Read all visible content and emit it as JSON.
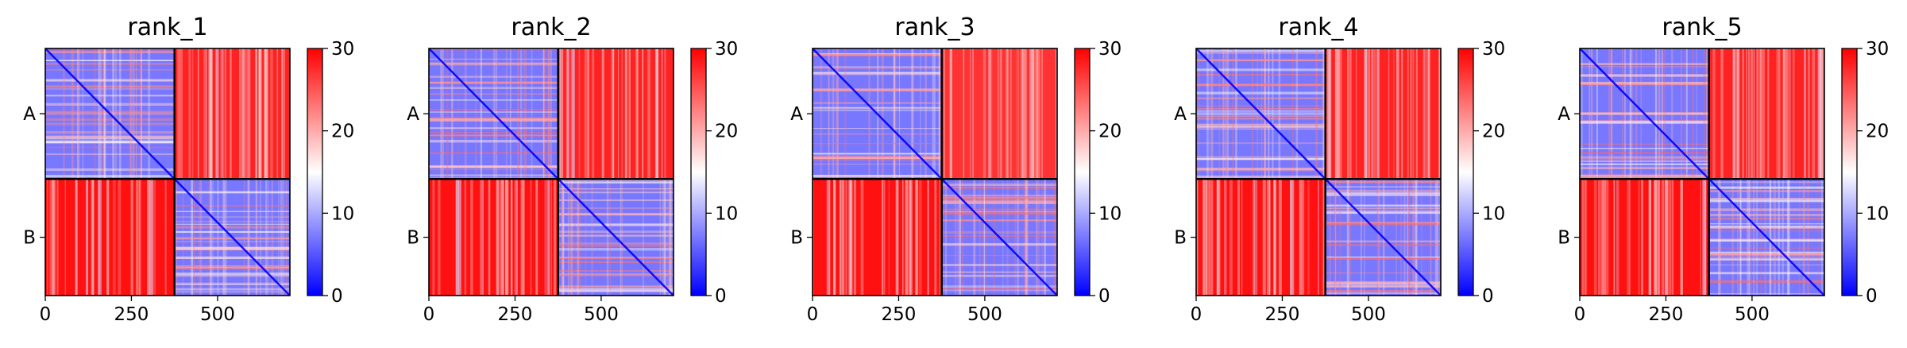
{
  "chart_data": [
    {
      "type": "heatmap",
      "title": "rank_1",
      "xlim": [
        0,
        710
      ],
      "x_ticks": [
        0,
        250,
        500
      ],
      "chain_boundary": 375,
      "y_labels": [
        "A",
        "B"
      ],
      "colorbar": {
        "range": [
          0,
          30
        ],
        "ticks": [
          0,
          10,
          20,
          30
        ],
        "colormap": [
          "#0000ff",
          "#ffffff",
          "#ff0000"
        ]
      },
      "blocks": [
        {
          "row": "A",
          "col": "A",
          "mean_value": 7
        },
        {
          "row": "A",
          "col": "B",
          "mean_value": 28
        },
        {
          "row": "B",
          "col": "A",
          "mean_value": 29
        },
        {
          "row": "B",
          "col": "B",
          "mean_value": 7
        }
      ]
    },
    {
      "type": "heatmap",
      "title": "rank_2",
      "xlim": [
        0,
        710
      ],
      "x_ticks": [
        0,
        250,
        500
      ],
      "chain_boundary": 375,
      "y_labels": [
        "A",
        "B"
      ],
      "colorbar": {
        "range": [
          0,
          30
        ],
        "ticks": [
          0,
          10,
          20,
          30
        ],
        "colormap": [
          "#0000ff",
          "#ffffff",
          "#ff0000"
        ]
      },
      "blocks": [
        {
          "row": "A",
          "col": "A",
          "mean_value": 7
        },
        {
          "row": "A",
          "col": "B",
          "mean_value": 28
        },
        {
          "row": "B",
          "col": "A",
          "mean_value": 29
        },
        {
          "row": "B",
          "col": "B",
          "mean_value": 7
        }
      ]
    },
    {
      "type": "heatmap",
      "title": "rank_3",
      "xlim": [
        0,
        710
      ],
      "x_ticks": [
        0,
        250,
        500
      ],
      "chain_boundary": 375,
      "y_labels": [
        "A",
        "B"
      ],
      "colorbar": {
        "range": [
          0,
          30
        ],
        "ticks": [
          0,
          10,
          20,
          30
        ],
        "colormap": [
          "#0000ff",
          "#ffffff",
          "#ff0000"
        ]
      },
      "blocks": [
        {
          "row": "A",
          "col": "A",
          "mean_value": 7
        },
        {
          "row": "A",
          "col": "B",
          "mean_value": 27
        },
        {
          "row": "B",
          "col": "A",
          "mean_value": 29
        },
        {
          "row": "B",
          "col": "B",
          "mean_value": 7
        }
      ]
    },
    {
      "type": "heatmap",
      "title": "rank_4",
      "xlim": [
        0,
        710
      ],
      "x_ticks": [
        0,
        250,
        500
      ],
      "chain_boundary": 375,
      "y_labels": [
        "A",
        "B"
      ],
      "colorbar": {
        "range": [
          0,
          30
        ],
        "ticks": [
          0,
          10,
          20,
          30
        ],
        "colormap": [
          "#0000ff",
          "#ffffff",
          "#ff0000"
        ]
      },
      "blocks": [
        {
          "row": "A",
          "col": "A",
          "mean_value": 7
        },
        {
          "row": "A",
          "col": "B",
          "mean_value": 28
        },
        {
          "row": "B",
          "col": "A",
          "mean_value": 29
        },
        {
          "row": "B",
          "col": "B",
          "mean_value": 7
        }
      ]
    },
    {
      "type": "heatmap",
      "title": "rank_5",
      "xlim": [
        0,
        710
      ],
      "x_ticks": [
        0,
        250,
        500
      ],
      "chain_boundary": 375,
      "y_labels": [
        "A",
        "B"
      ],
      "colorbar": {
        "range": [
          0,
          30
        ],
        "ticks": [
          0,
          10,
          20,
          30
        ],
        "colormap": [
          "#0000ff",
          "#ffffff",
          "#ff0000"
        ]
      },
      "blocks": [
        {
          "row": "A",
          "col": "A",
          "mean_value": 7
        },
        {
          "row": "A",
          "col": "B",
          "mean_value": 28
        },
        {
          "row": "B",
          "col": "A",
          "mean_value": 29
        },
        {
          "row": "B",
          "col": "B",
          "mean_value": 7
        }
      ]
    }
  ]
}
